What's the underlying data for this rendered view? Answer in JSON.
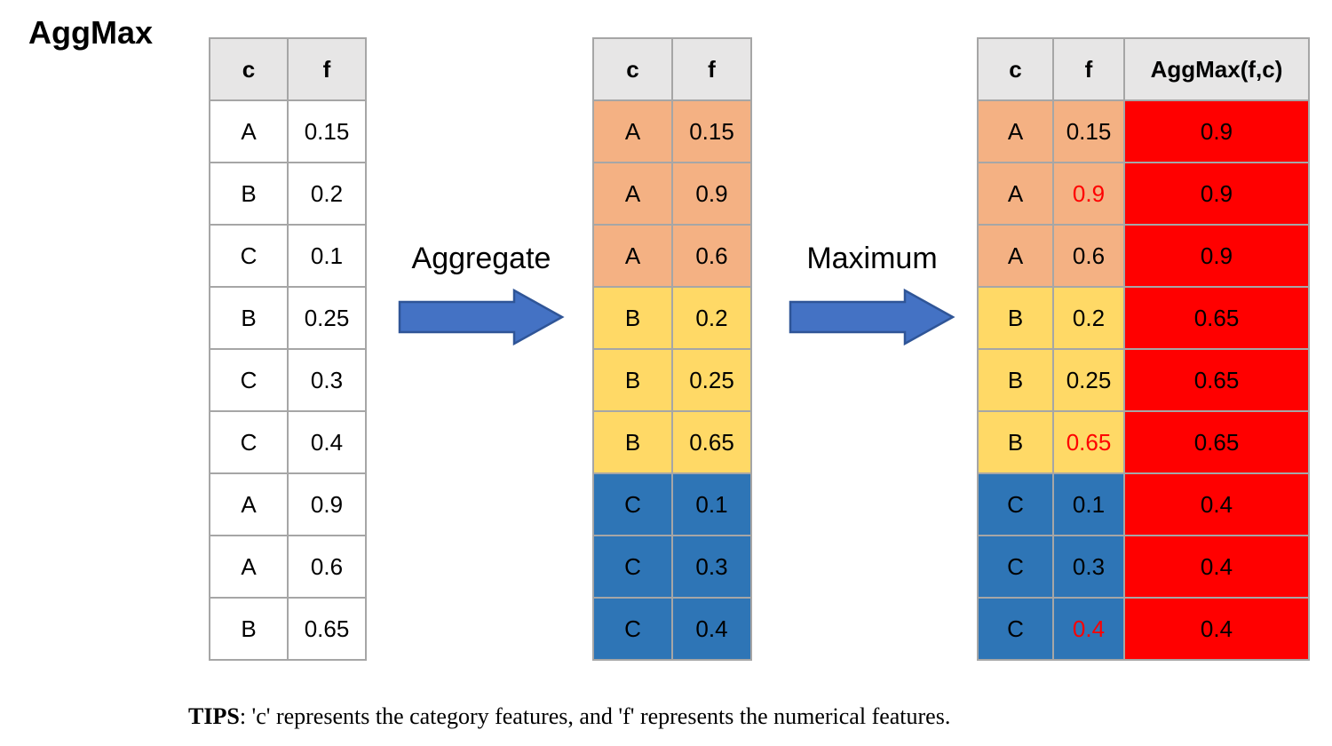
{
  "title": "AggMax",
  "colors": {
    "header_bg": "#e7e6e6",
    "table_border": "#a6a6a6",
    "group_A": "#f4b183",
    "group_B": "#ffd966",
    "group_C": "#2e75b6",
    "aggmax_cell_bg": "#ff0000",
    "max_value_text": "#ff0000",
    "arrow_fill": "#4472c4",
    "arrow_stroke": "#2f5597"
  },
  "left_table": {
    "headers": [
      "c",
      "f"
    ],
    "rows": [
      {
        "c": "A",
        "f": "0.15"
      },
      {
        "c": "B",
        "f": "0.2"
      },
      {
        "c": "C",
        "f": "0.1"
      },
      {
        "c": "B",
        "f": "0.25"
      },
      {
        "c": "C",
        "f": "0.3"
      },
      {
        "c": "C",
        "f": "0.4"
      },
      {
        "c": "A",
        "f": "0.9"
      },
      {
        "c": "A",
        "f": "0.6"
      },
      {
        "c": "B",
        "f": "0.65"
      }
    ]
  },
  "middle_table": {
    "headers": [
      "c",
      "f"
    ],
    "rows": [
      {
        "c": "A",
        "f": "0.15",
        "group": "A"
      },
      {
        "c": "A",
        "f": "0.9",
        "group": "A"
      },
      {
        "c": "A",
        "f": "0.6",
        "group": "A"
      },
      {
        "c": "B",
        "f": "0.2",
        "group": "B"
      },
      {
        "c": "B",
        "f": "0.25",
        "group": "B"
      },
      {
        "c": "B",
        "f": "0.65",
        "group": "B"
      },
      {
        "c": "C",
        "f": "0.1",
        "group": "C"
      },
      {
        "c": "C",
        "f": "0.3",
        "group": "C"
      },
      {
        "c": "C",
        "f": "0.4",
        "group": "C"
      }
    ]
  },
  "right_table": {
    "headers": [
      "c",
      "f",
      "AggMax(f,c)"
    ],
    "rows": [
      {
        "c": "A",
        "f": "0.15",
        "aggmax": "0.9",
        "group": "A",
        "f_is_max": false
      },
      {
        "c": "A",
        "f": "0.9",
        "aggmax": "0.9",
        "group": "A",
        "f_is_max": true
      },
      {
        "c": "A",
        "f": "0.6",
        "aggmax": "0.9",
        "group": "A",
        "f_is_max": false
      },
      {
        "c": "B",
        "f": "0.2",
        "aggmax": "0.65",
        "group": "B",
        "f_is_max": false
      },
      {
        "c": "B",
        "f": "0.25",
        "aggmax": "0.65",
        "group": "B",
        "f_is_max": false
      },
      {
        "c": "B",
        "f": "0.65",
        "aggmax": "0.65",
        "group": "B",
        "f_is_max": true
      },
      {
        "c": "C",
        "f": "0.1",
        "aggmax": "0.4",
        "group": "C",
        "f_is_max": false
      },
      {
        "c": "C",
        "f": "0.3",
        "aggmax": "0.4",
        "group": "C",
        "f_is_max": false
      },
      {
        "c": "C",
        "f": "0.4",
        "aggmax": "0.4",
        "group": "C",
        "f_is_max": true
      }
    ]
  },
  "arrows": {
    "aggregate_label": "Aggregate",
    "maximum_label": "Maximum"
  },
  "tip": {
    "label": "TIPS",
    "text": ": 'c' represents the category features, and 'f' represents the numerical features."
  }
}
